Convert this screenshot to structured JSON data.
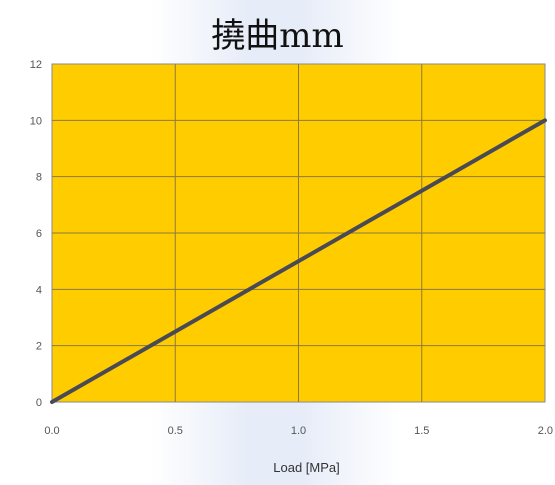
{
  "chart_data": {
    "type": "line",
    "title": "撓曲mm",
    "xlabel": "Load [MPa]",
    "ylabel": "",
    "xlim": [
      0.0,
      2.0
    ],
    "ylim": [
      0,
      12
    ],
    "xticks": [
      "0.0",
      "0.5",
      "1.0",
      "1.5",
      "2.0"
    ],
    "yticks": [
      "0",
      "2",
      "4",
      "6",
      "8",
      "10",
      "12"
    ],
    "grid": true,
    "plot_background": "#FFCC00",
    "series": [
      {
        "x": [
          0.0,
          2.0
        ],
        "y": [
          0,
          10
        ],
        "color": "#4a4a55"
      }
    ]
  }
}
